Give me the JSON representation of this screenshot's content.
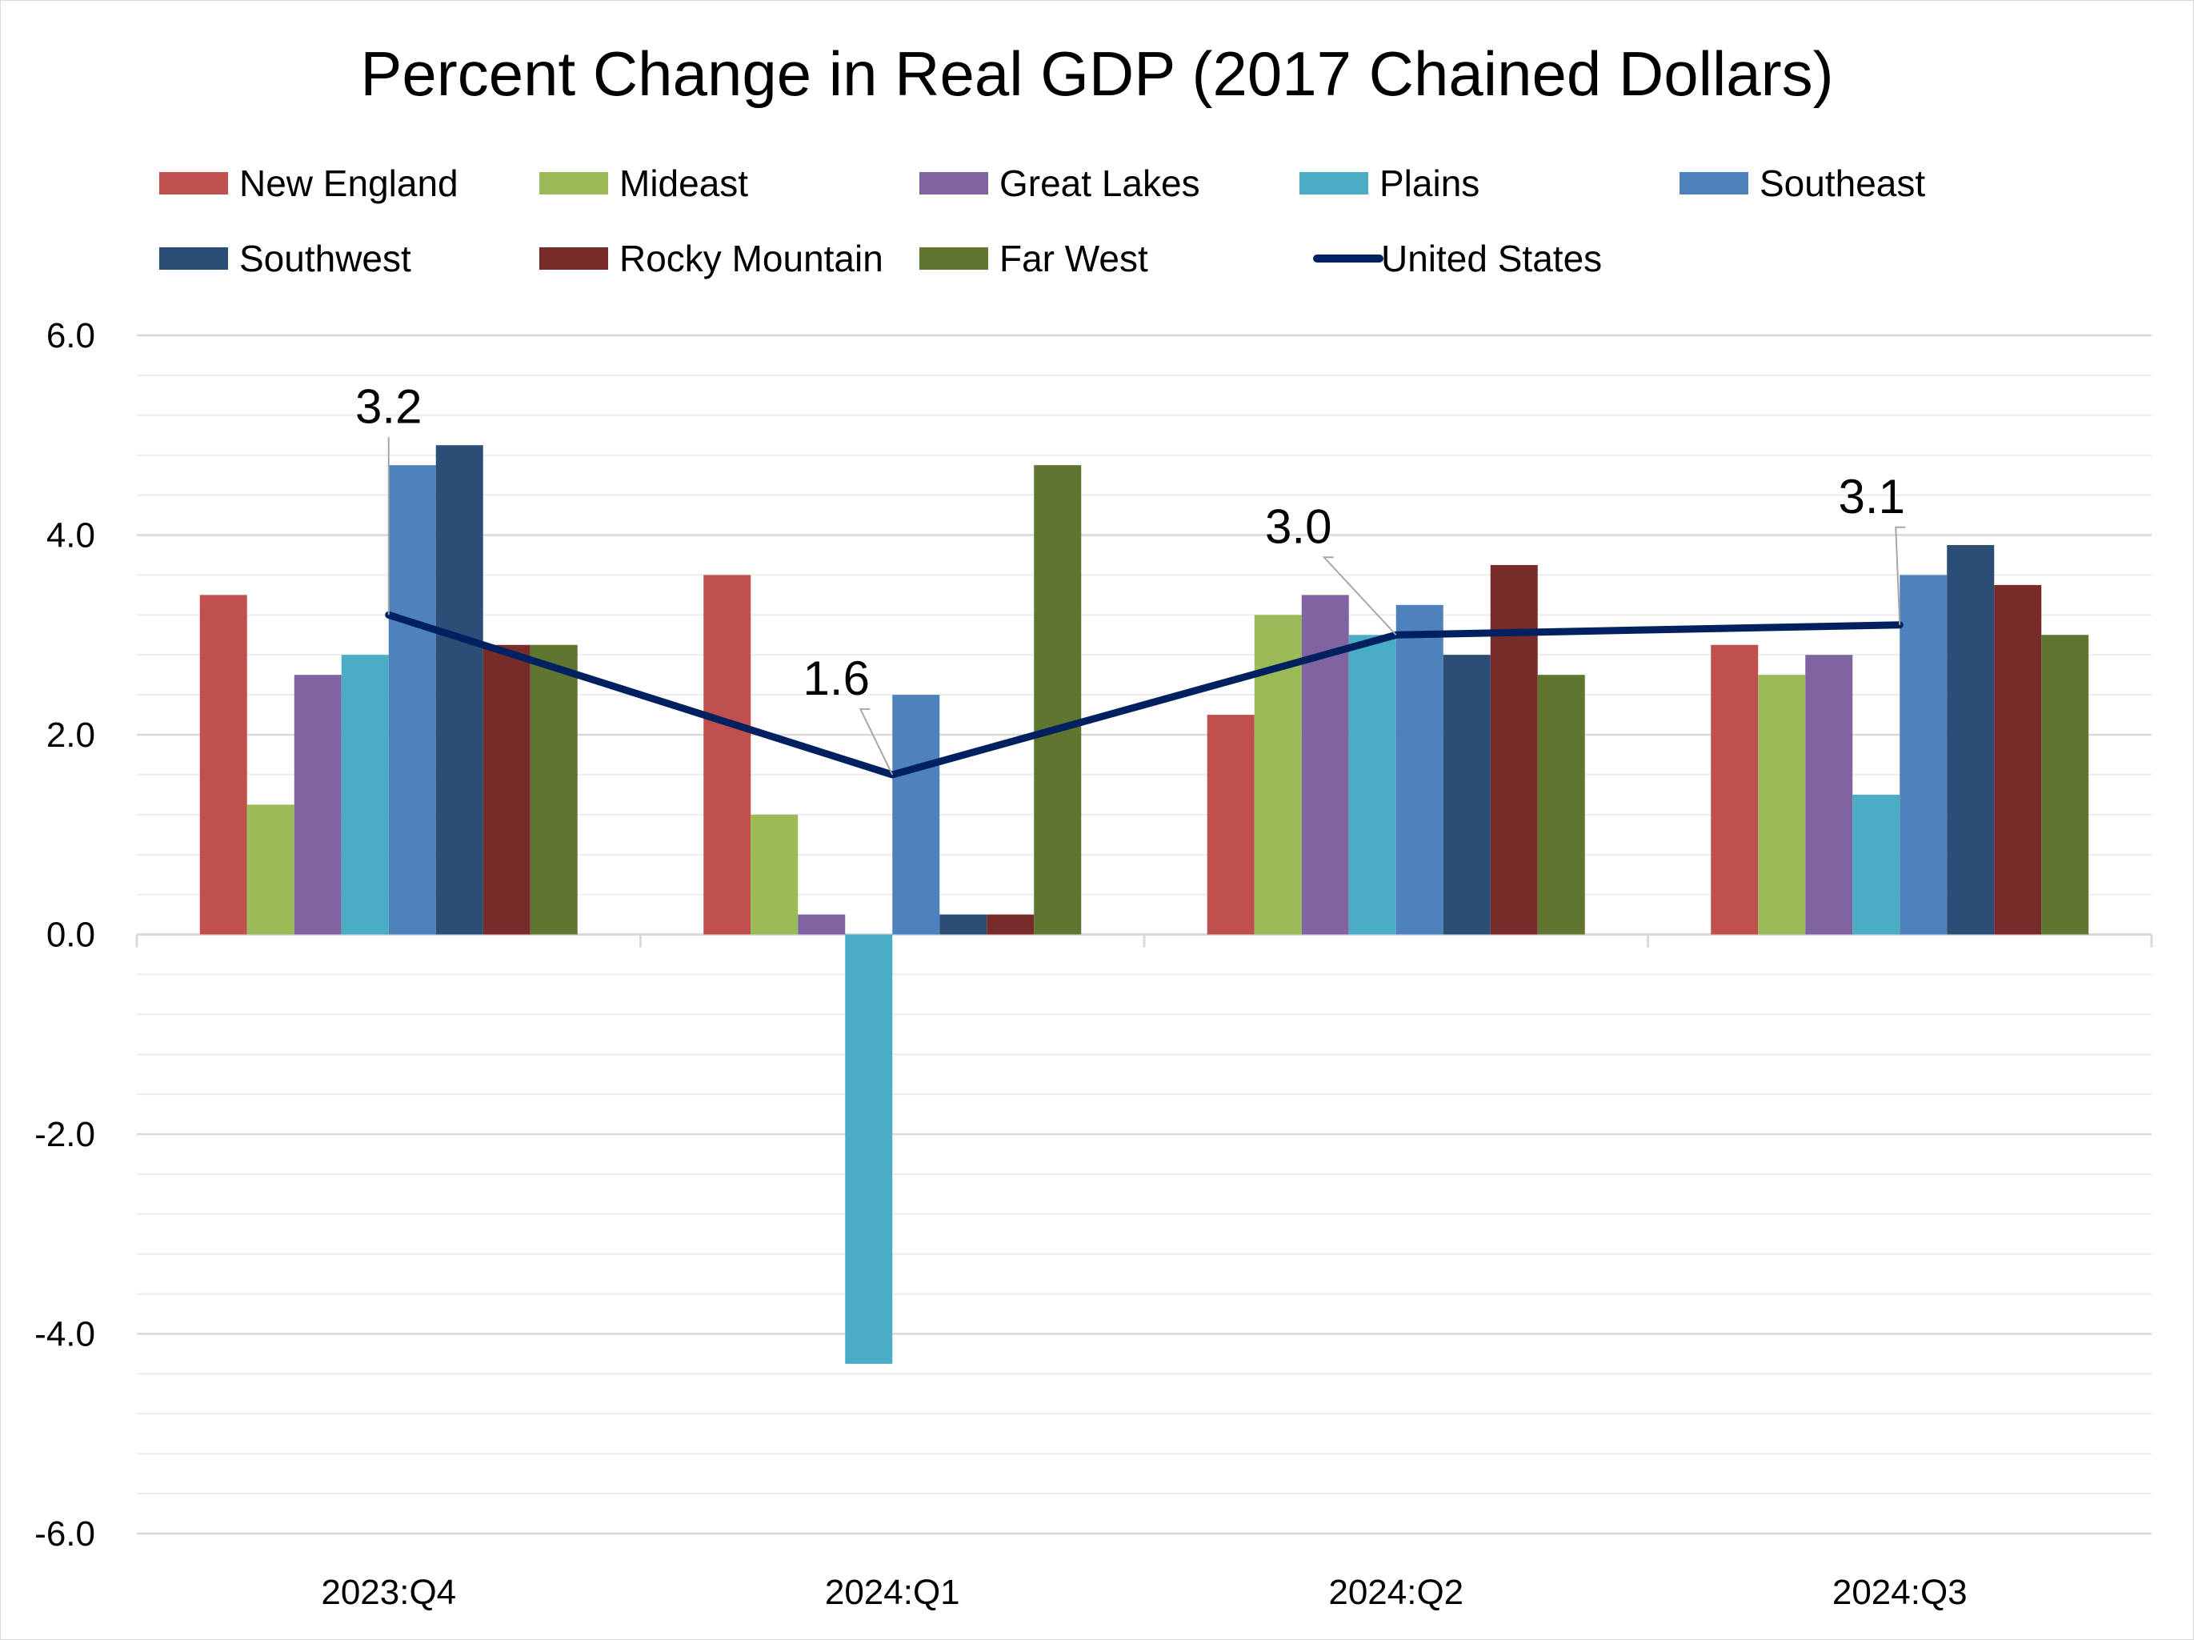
{
  "chart_data": {
    "type": "bar",
    "title": "Percent Change in Real GDP (2017 Chained Dollars)",
    "xlabel": "",
    "ylabel": "",
    "categories": [
      "2023:Q4",
      "2024:Q1",
      "2024:Q2",
      "2024:Q3"
    ],
    "ylim": [
      -6.0,
      6.0
    ],
    "yticks": [
      "6.0",
      "4.0",
      "2.0",
      "0.0",
      "-2.0",
      "-4.0",
      "-6.0"
    ],
    "y_minor_step": 0.4,
    "grid": true,
    "legend_position": "top",
    "series": [
      {
        "name": "New England",
        "color": "#C0504D",
        "values": [
          3.4,
          3.6,
          2.2,
          2.9
        ]
      },
      {
        "name": "Mideast",
        "color": "#9BBB59",
        "values": [
          1.3,
          1.2,
          3.2,
          2.6
        ]
      },
      {
        "name": "Great Lakes",
        "color": "#8064A2",
        "values": [
          2.6,
          0.2,
          3.4,
          2.8
        ]
      },
      {
        "name": "Plains",
        "color": "#4BACC6",
        "values": [
          2.8,
          -4.3,
          3.0,
          1.4
        ]
      },
      {
        "name": "Southeast",
        "color": "#4F81BD",
        "values": [
          4.7,
          2.4,
          3.3,
          3.6
        ]
      },
      {
        "name": "Southwest",
        "color": "#2C4D75",
        "values": [
          4.9,
          0.2,
          2.8,
          3.9
        ]
      },
      {
        "name": "Rocky Mountain",
        "color": "#772C2A",
        "values": [
          2.9,
          0.2,
          3.7,
          3.5
        ]
      },
      {
        "name": "Far West",
        "color": "#5F7530",
        "values": [
          2.9,
          4.7,
          2.6,
          3.0
        ]
      }
    ],
    "line_series": {
      "name": "United States",
      "color": "#002060",
      "values": [
        3.2,
        1.6,
        3.0,
        3.1
      ],
      "data_labels": [
        "3.2",
        "1.6",
        "3.0",
        "3.1"
      ]
    }
  }
}
